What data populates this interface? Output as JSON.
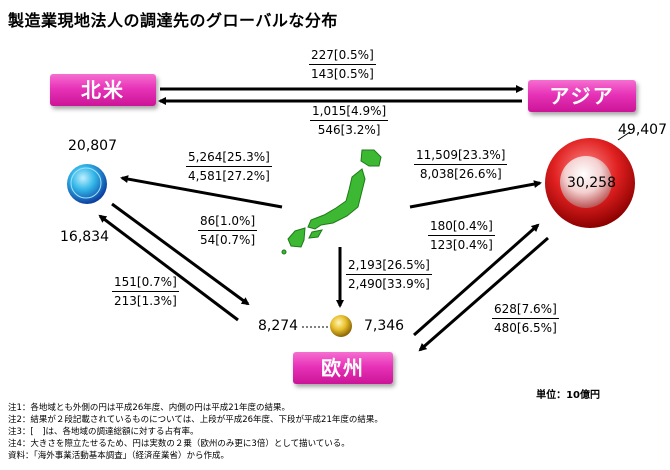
{
  "title": "製造業現地法人の調達先のグローバルな分布",
  "regions": {
    "north_america": "北米",
    "asia": "アジア",
    "europe": "欧州"
  },
  "circles": {
    "north_america": {
      "outer": "20,807",
      "inner": "16,834"
    },
    "asia": {
      "outer": "49,407",
      "inner": "30,258"
    },
    "europe": {
      "outer": "8,274",
      "inner": "7,346"
    }
  },
  "flows": {
    "na_to_asia": {
      "top": "227[0.5%]",
      "bottom": "143[0.5%]"
    },
    "asia_to_na": {
      "top": "1,015[4.9%]",
      "bottom": "546[3.2%]"
    },
    "japan_to_na": {
      "top": "5,264[25.3%]",
      "bottom": "4,581[27.2%]"
    },
    "japan_to_asia": {
      "top": "11,509[23.3%]",
      "bottom": "8,038[26.6%]"
    },
    "na_to_europe": {
      "top": "86[1.0%]",
      "bottom": "54[0.7%]"
    },
    "europe_to_na": {
      "top": "151[0.7%]",
      "bottom": "213[1.3%]"
    },
    "japan_to_europe": {
      "top": "2,193[26.5%]",
      "bottom": "2,490[33.9%]"
    },
    "europe_to_asia": {
      "top": "180[0.4%]",
      "bottom": "123[0.4%]"
    },
    "asia_to_europe": {
      "top": "628[7.6%]",
      "bottom": "480[6.5%]"
    }
  },
  "unit": "単位：10億円",
  "notes": [
    "注1：各地域とも外側の円は平成26年度、内側の円は平成21年度の結果。",
    "注2：結果が２段記載されているものについては、上段が平成26年度、下段が平成21年度の結果。",
    "注3：[　]は、各地域の調達総額に対する占有率。",
    "注4：大きさを際立たせるため、円は実数の２乗（欧州のみ更に3倍）として描いている。",
    "資料：「海外事業活動基本調査」（経済産業省）から作成。"
  ],
  "colors": {
    "region_pink": "#e733b8",
    "japan_green": "#3cb832",
    "na_circle": "#1a7fd0",
    "asia_circle": "#d8141a",
    "eu_circle": "#d4a520"
  }
}
